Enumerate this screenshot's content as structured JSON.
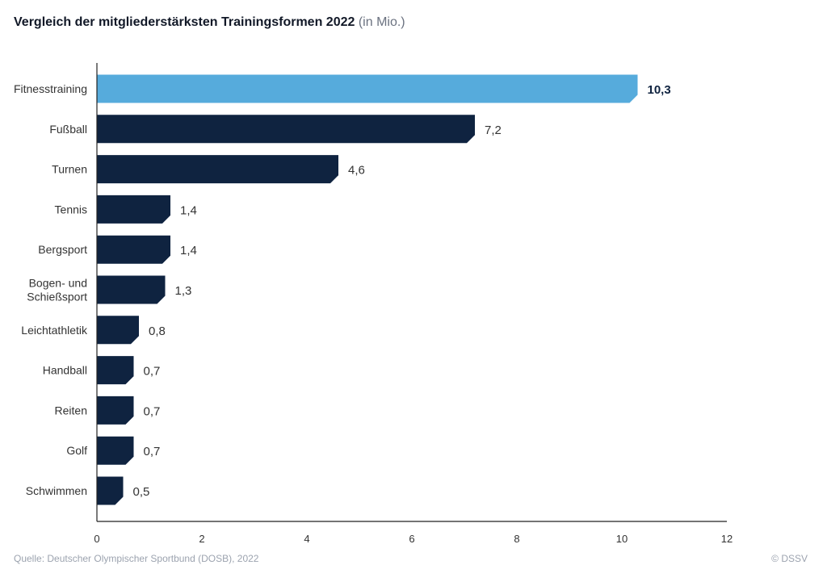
{
  "header": {
    "title": "Vergleich der mitgliederstärksten Trainingsformen 2022",
    "unit": "(in Mio.)"
  },
  "footer": {
    "source": "Quelle: Deutscher Olympischer Sportbund (DOSB), 2022",
    "copyright": "© DSSV"
  },
  "colors": {
    "highlight": "#56abdc",
    "bar": "#0f2340",
    "axis": "#222222",
    "label": "#333333"
  },
  "chart_data": {
    "type": "bar",
    "orientation": "horizontal",
    "categories": [
      "Fitnesstraining",
      "Fußball",
      "Turnen",
      "Tennis",
      "Bergsport",
      "Bogen- und Schießsport",
      "Leichtathletik",
      "Handball",
      "Reiten",
      "Golf",
      "Schwimmen"
    ],
    "values": [
      10.3,
      7.2,
      4.6,
      1.4,
      1.4,
      1.3,
      0.8,
      0.7,
      0.7,
      0.7,
      0.5
    ],
    "value_labels": [
      "10,3",
      "7,2",
      "4,6",
      "1,4",
      "1,4",
      "1,3",
      "0,8",
      "0,7",
      "0,7",
      "0,7",
      "0,5"
    ],
    "highlight_index": 0,
    "xlim": [
      0,
      12
    ],
    "xticks": [
      0,
      2,
      4,
      6,
      8,
      10,
      12
    ],
    "grid": false
  }
}
